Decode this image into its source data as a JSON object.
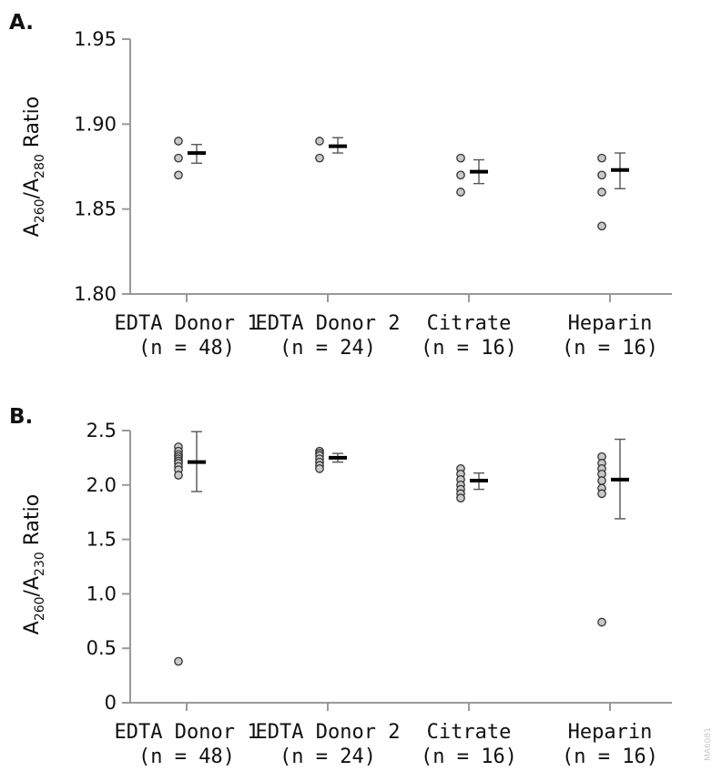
{
  "figure_code": "MA6081",
  "chart_data": [
    {
      "panel": "A.",
      "type": "scatter",
      "ylabel": {
        "main": "A",
        "sub1": "260",
        "slash": "/A",
        "sub2": "280",
        "rest": " Ratio"
      },
      "ylim": [
        1.8,
        1.95
      ],
      "yticks": [
        "1.80",
        "1.85",
        "1.90",
        "1.95"
      ],
      "ytick_values": [
        1.8,
        1.85,
        1.9,
        1.95
      ],
      "categories": [
        {
          "line1": "EDTA Donor 1",
          "line2": "(n = 48)",
          "points": [
            1.89,
            1.88,
            1.87
          ],
          "mean": 1.883,
          "err_low": 1.877,
          "err_high": 1.888
        },
        {
          "line1": "EDTA Donor 2",
          "line2": "(n = 24)",
          "points": [
            1.89,
            1.88
          ],
          "mean": 1.887,
          "err_low": 1.883,
          "err_high": 1.892
        },
        {
          "line1": "Citrate",
          "line2": "(n = 16)",
          "points": [
            1.88,
            1.87,
            1.86
          ],
          "mean": 1.872,
          "err_low": 1.865,
          "err_high": 1.879
        },
        {
          "line1": "Heparin",
          "line2": "(n = 16)",
          "points": [
            1.88,
            1.87,
            1.86,
            1.84
          ],
          "mean": 1.873,
          "err_low": 1.862,
          "err_high": 1.883
        }
      ]
    },
    {
      "panel": "B.",
      "type": "scatter",
      "ylabel": {
        "main": "A",
        "sub1": "260",
        "slash": "/A",
        "sub2": "230",
        "rest": " Ratio"
      },
      "ylim": [
        0,
        2.5
      ],
      "yticks": [
        "0",
        "0.5",
        "1.0",
        "1.5",
        "2.0",
        "2.5"
      ],
      "ytick_values": [
        0,
        0.5,
        1.0,
        1.5,
        2.0,
        2.5
      ],
      "categories": [
        {
          "line1": "EDTA Donor 1",
          "line2": "(n = 48)",
          "points": [
            2.35,
            2.31,
            2.28,
            2.26,
            2.24,
            2.22,
            2.2,
            2.17,
            2.14,
            2.09,
            0.38
          ],
          "mean": 2.21,
          "err_low": 1.94,
          "err_high": 2.49
        },
        {
          "line1": "EDTA Donor 2",
          "line2": "(n = 24)",
          "points": [
            2.31,
            2.29,
            2.27,
            2.24,
            2.21,
            2.18,
            2.15
          ],
          "mean": 2.25,
          "err_low": 2.21,
          "err_high": 2.29
        },
        {
          "line1": "Citrate",
          "line2": "(n = 16)",
          "points": [
            2.15,
            2.1,
            2.05,
            2.0,
            1.96,
            1.92,
            1.88
          ],
          "mean": 2.04,
          "err_low": 1.96,
          "err_high": 2.11
        },
        {
          "line1": "Heparin",
          "line2": "(n = 16)",
          "points": [
            2.26,
            2.2,
            2.15,
            2.1,
            2.04,
            1.97,
            1.92,
            0.74
          ],
          "mean": 2.05,
          "err_low": 1.69,
          "err_high": 2.42
        }
      ]
    }
  ]
}
